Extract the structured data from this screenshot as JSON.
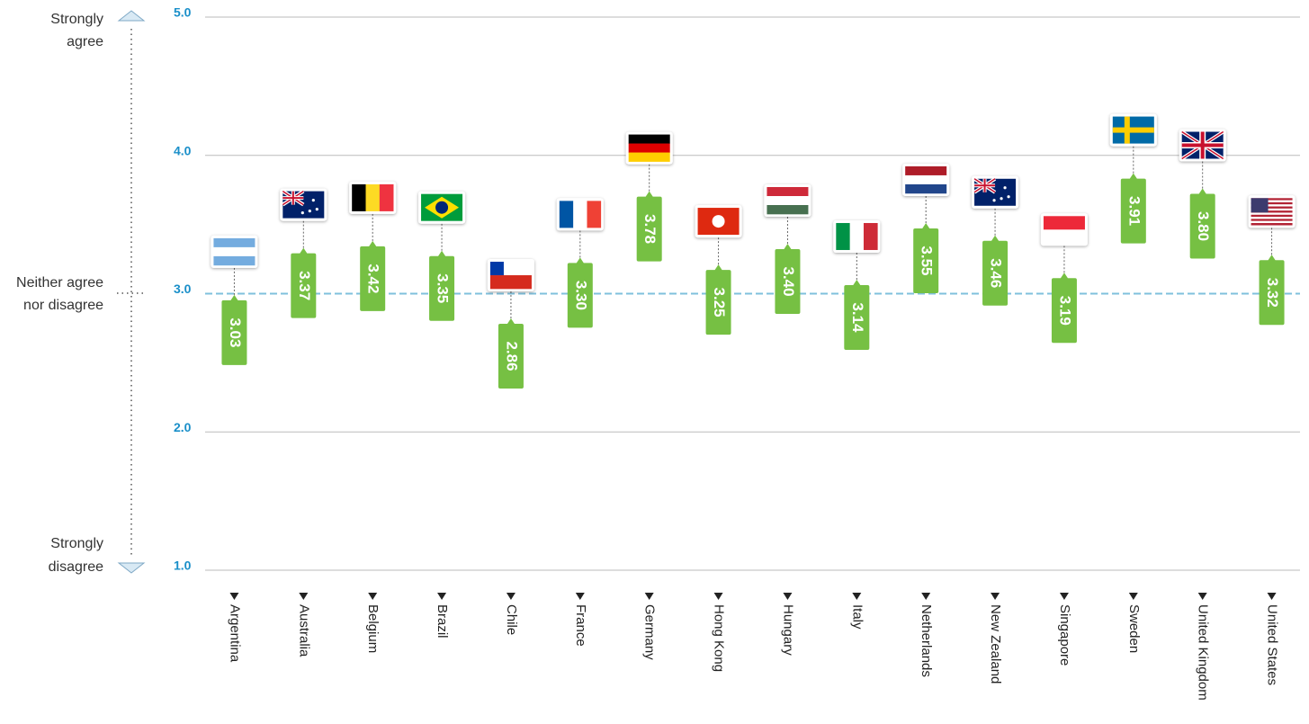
{
  "chart_data": {
    "type": "dot_label",
    "categories": [
      "Argentina",
      "Australia",
      "Belgium",
      "Brazil",
      "Chile",
      "France",
      "Germany",
      "Hong Kong",
      "Hungary",
      "Italy",
      "Netherlands",
      "New Zealand",
      "Singapore",
      "Sweden",
      "United Kingdom",
      "United States"
    ],
    "values": [
      3.03,
      3.37,
      3.42,
      3.35,
      2.86,
      3.3,
      3.78,
      3.25,
      3.4,
      3.14,
      3.55,
      3.46,
      3.19,
      3.91,
      3.8,
      3.32
    ],
    "value_labels": [
      "3.03",
      "3.37",
      "3.42",
      "3.35",
      "2.86",
      "3.30",
      "3.78",
      "3.25",
      "3.40",
      "3.14",
      "3.55",
      "3.46",
      "3.19",
      "3.91",
      "3.80",
      "3.32"
    ],
    "color": "#76c043",
    "ylim": [
      1,
      5
    ],
    "yticks": [
      {
        "value": 1,
        "label": "1.0"
      },
      {
        "value": 2,
        "label": "2.0"
      },
      {
        "value": 3,
        "label": "3.0"
      },
      {
        "value": 4,
        "label": "4.0"
      },
      {
        "value": 5,
        "label": "5.0"
      }
    ],
    "grid": true,
    "reference_line": 3,
    "top_label": [
      "Strongly",
      "agree"
    ],
    "middle_label": [
      "Neither agree",
      "nor disagree"
    ],
    "bottom_label": [
      "Strongly",
      "disagree"
    ]
  }
}
